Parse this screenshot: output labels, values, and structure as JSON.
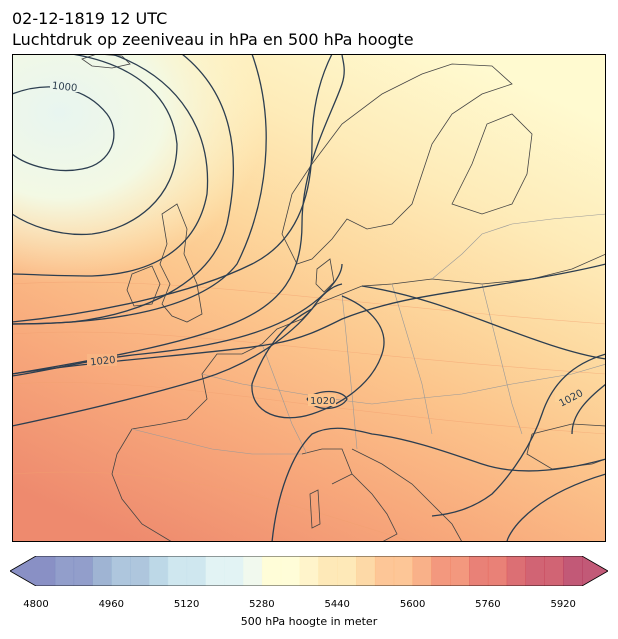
{
  "header": {
    "datetime": "02-12-1819 12 UTC",
    "title": "Luchtdruk op zeeniveau in hPa en 500 hPa hoogte"
  },
  "map": {
    "region": "Europe",
    "projection": "lat-lon",
    "contour_labels": [
      "1000",
      "1020",
      "1020",
      "1020"
    ],
    "isobar_color": "#2c3e50",
    "coastline_color": "#444444",
    "border_color": "#999999"
  },
  "colorbar": {
    "label": "500 hPa hoogte in meter",
    "ticks": [
      "4800",
      "4960",
      "5120",
      "5280",
      "5440",
      "5600",
      "5760",
      "5920"
    ],
    "min": 4800,
    "max": 5960,
    "step": 40,
    "colormap": "RdYlBu_r",
    "extend": "both",
    "palette": [
      "#6f77b8",
      "#7a89bf",
      "#8aa3c9",
      "#9cbad5",
      "#afd0e2",
      "#c5e2ec",
      "#dcf0f2",
      "#eef8ea",
      "#fffccf",
      "#fff2bf",
      "#fee4a8",
      "#fdd194",
      "#fcba80",
      "#f8a06f",
      "#f08162",
      "#e46559",
      "#d44f55",
      "#c74256",
      "#b43459"
    ]
  }
}
